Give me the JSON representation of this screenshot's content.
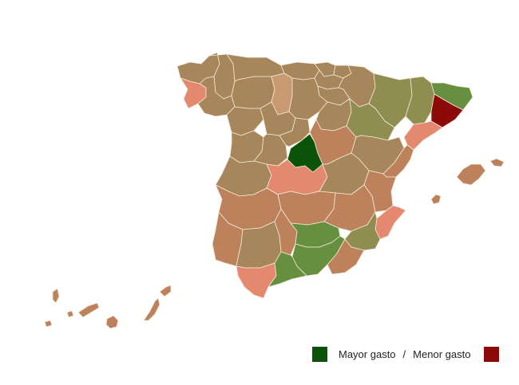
{
  "legend": {
    "high_label": "Mayor gasto",
    "separator": "/",
    "low_label": "Menor gasto",
    "high_color": "#0b520b",
    "low_color": "#8c0a0a"
  },
  "palette": {
    "neutral": "#a6865a",
    "warm": "#bd825b",
    "salmon": "#e4896f",
    "red": "#8c0a0a",
    "olive": "#8f8d4f",
    "green": "#66903f",
    "darkgreen": "#0b520b",
    "lightbrown": "#c79a72"
  },
  "provinces": [
    {
      "name": "A Coruña",
      "tone": "neutral"
    },
    {
      "name": "Lugo",
      "tone": "neutral"
    },
    {
      "name": "Pontevedra",
      "tone": "salmon"
    },
    {
      "name": "Ourense",
      "tone": "neutral"
    },
    {
      "name": "Asturias",
      "tone": "neutral"
    },
    {
      "name": "Cantabria",
      "tone": "neutral"
    },
    {
      "name": "Bizkaia",
      "tone": "neutral"
    },
    {
      "name": "Gipuzkoa",
      "tone": "neutral"
    },
    {
      "name": "Araba",
      "tone": "neutral"
    },
    {
      "name": "Navarra",
      "tone": "neutral"
    },
    {
      "name": "La Rioja",
      "tone": "neutral"
    },
    {
      "name": "León",
      "tone": "neutral"
    },
    {
      "name": "Palencia",
      "tone": "lightbrown"
    },
    {
      "name": "Burgos",
      "tone": "neutral"
    },
    {
      "name": "Zamora",
      "tone": "neutral"
    },
    {
      "name": "Valladolid",
      "tone": "neutral"
    },
    {
      "name": "Soria",
      "tone": "neutral"
    },
    {
      "name": "Salamanca",
      "tone": "neutral"
    },
    {
      "name": "Ávila",
      "tone": "neutral"
    },
    {
      "name": "Segovia",
      "tone": "neutral"
    },
    {
      "name": "Madrid",
      "tone": "darkgreen"
    },
    {
      "name": "Guadalajara",
      "tone": "warm"
    },
    {
      "name": "Huesca",
      "tone": "olive"
    },
    {
      "name": "Zaragoza",
      "tone": "olive"
    },
    {
      "name": "Teruel",
      "tone": "neutral"
    },
    {
      "name": "Lleida",
      "tone": "olive"
    },
    {
      "name": "Girona",
      "tone": "green"
    },
    {
      "name": "Barcelona",
      "tone": "red"
    },
    {
      "name": "Tarragona",
      "tone": "salmon"
    },
    {
      "name": "Cáceres",
      "tone": "neutral"
    },
    {
      "name": "Badajoz",
      "tone": "warm"
    },
    {
      "name": "Toledo",
      "tone": "salmon"
    },
    {
      "name": "Cuenca",
      "tone": "neutral"
    },
    {
      "name": "Ciudad Real",
      "tone": "warm"
    },
    {
      "name": "Albacete",
      "tone": "warm"
    },
    {
      "name": "Castellón",
      "tone": "warm"
    },
    {
      "name": "Valencia",
      "tone": "warm"
    },
    {
      "name": "Alicante",
      "tone": "salmon"
    },
    {
      "name": "Murcia",
      "tone": "olive"
    },
    {
      "name": "Huelva",
      "tone": "warm"
    },
    {
      "name": "Sevilla",
      "tone": "neutral"
    },
    {
      "name": "Córdoba",
      "tone": "warm"
    },
    {
      "name": "Jaén",
      "tone": "green"
    },
    {
      "name": "Granada",
      "tone": "green"
    },
    {
      "name": "Almería",
      "tone": "warm"
    },
    {
      "name": "Cádiz",
      "tone": "salmon"
    },
    {
      "name": "Málaga",
      "tone": "green"
    },
    {
      "name": "Mallorca",
      "tone": "warm"
    },
    {
      "name": "Menorca",
      "tone": "warm"
    },
    {
      "name": "Ibiza",
      "tone": "warm"
    },
    {
      "name": "Tenerife",
      "tone": "warm"
    },
    {
      "name": "Gran Canaria",
      "tone": "warm"
    },
    {
      "name": "Lanzarote",
      "tone": "warm"
    },
    {
      "name": "Fuerteventura",
      "tone": "warm"
    },
    {
      "name": "La Palma",
      "tone": "warm"
    },
    {
      "name": "La Gomera",
      "tone": "warm"
    },
    {
      "name": "El Hierro",
      "tone": "warm"
    }
  ]
}
